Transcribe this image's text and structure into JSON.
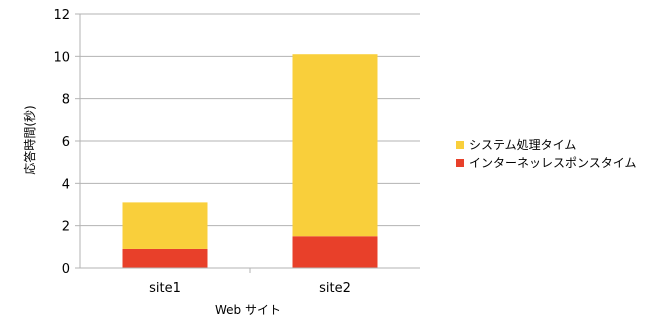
{
  "chart_data": {
    "type": "bar",
    "stacked": true,
    "categories": [
      "site1",
      "site2"
    ],
    "series": [
      {
        "name": "インターネッレスポンスタイム",
        "color": "#e8402a",
        "values": [
          0.9,
          1.5
        ]
      },
      {
        "name": "システム処理タイム",
        "color": "#f9cf3b",
        "values": [
          2.2,
          8.6
        ]
      }
    ],
    "legend_order": [
      1,
      0
    ],
    "xlabel": "Web サイト",
    "ylabel": "応答時間(秒)",
    "ylim": [
      0,
      12
    ],
    "yticks": [
      0,
      2,
      4,
      6,
      8,
      10,
      12
    ],
    "grid": true,
    "legend_position": "right"
  }
}
